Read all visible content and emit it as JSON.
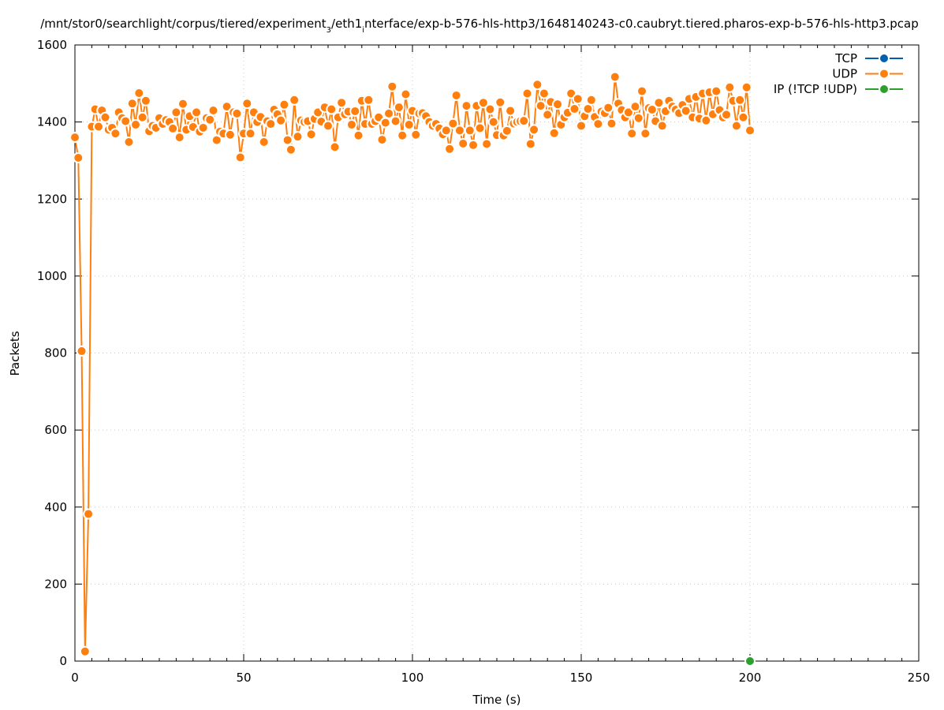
{
  "chart_data": {
    "type": "line",
    "title": {
      "parts": [
        {
          "text": "/mnt/stor0/searchlight/corpus/tiered/experiment",
          "sub": false
        },
        {
          "text": "3",
          "sub": true
        },
        {
          "text": "/eth1",
          "sub": false
        },
        {
          "text": "i",
          "sub": true
        },
        {
          "text": "nterface/exp-b-576-hls-http3/1648140243-c0.caubryt.tiered.pharos-exp-b-576-hls-http3.pcap",
          "sub": false
        }
      ]
    },
    "xlabel": "Time (s)",
    "ylabel": "Packets",
    "xlim": [
      0,
      250
    ],
    "ylim": [
      0,
      1600
    ],
    "x_ticks": [
      0,
      50,
      100,
      150,
      200,
      250
    ],
    "y_ticks": [
      0,
      200,
      400,
      600,
      800,
      1000,
      1200,
      1400,
      1600
    ],
    "grid": true,
    "legend_position": "top-right",
    "series": [
      {
        "name": "TCP",
        "color": "#0060ad",
        "x": [],
        "y": []
      },
      {
        "name": "UDP",
        "color": "#ff7f0e",
        "x": [
          0,
          1,
          2,
          3,
          4,
          5,
          6,
          7,
          8,
          9,
          10,
          11,
          12,
          13,
          14,
          15,
          16,
          17,
          18,
          19,
          20,
          21,
          22,
          23,
          24,
          25,
          26,
          27,
          28,
          29,
          30,
          31,
          32,
          33,
          34,
          35,
          36,
          37,
          38,
          39,
          40,
          41,
          42,
          43,
          44,
          45,
          46,
          47,
          48,
          49,
          50,
          51,
          52,
          53,
          54,
          55,
          56,
          57,
          58,
          59,
          60,
          61,
          62,
          63,
          64,
          65,
          66,
          67,
          68,
          69,
          70,
          71,
          72,
          73,
          74,
          75,
          76,
          77,
          78,
          79,
          80,
          81,
          82,
          83,
          84,
          85,
          86,
          87,
          88,
          89,
          90,
          91,
          92,
          93,
          94,
          95,
          96,
          97,
          98,
          99,
          100,
          101,
          102,
          103,
          104,
          105,
          106,
          107,
          108,
          109,
          110,
          111,
          112,
          113,
          114,
          115,
          116,
          117,
          118,
          119,
          120,
          121,
          122,
          123,
          124,
          125,
          126,
          127,
          128,
          129,
          130,
          131,
          132,
          133,
          134,
          135,
          136,
          137,
          138,
          139,
          140,
          141,
          142,
          143,
          144,
          145,
          146,
          147,
          148,
          149,
          150,
          151,
          152,
          153,
          154,
          155,
          156,
          157,
          158,
          159,
          160,
          161,
          162,
          163,
          164,
          165,
          166,
          167,
          168,
          169,
          170,
          171,
          172,
          173,
          174,
          175,
          176,
          177,
          178,
          179,
          180,
          181,
          182,
          183,
          184,
          185,
          186,
          187,
          188,
          189,
          190,
          191,
          192,
          193,
          194,
          195,
          196,
          197,
          198,
          199,
          200
        ],
        "y": [
          1360,
          1307,
          805,
          25,
          382,
          1388,
          1433,
          1388,
          1430,
          1412,
          1380,
          1385,
          1370,
          1425,
          1410,
          1402,
          1348,
          1448,
          1393,
          1475,
          1412,
          1455,
          1376,
          1390,
          1385,
          1410,
          1395,
          1405,
          1400,
          1383,
          1425,
          1360,
          1447,
          1380,
          1415,
          1387,
          1425,
          1375,
          1385,
          1410,
          1406,
          1430,
          1353,
          1375,
          1370,
          1440,
          1367,
          1425,
          1422,
          1308,
          1370,
          1448,
          1370,
          1425,
          1400,
          1413,
          1348,
          1402,
          1395,
          1432,
          1420,
          1404,
          1445,
          1353,
          1328,
          1457,
          1362,
          1404,
          1400,
          1402,
          1368,
          1408,
          1425,
          1401,
          1438,
          1390,
          1433,
          1335,
          1412,
          1450,
          1420,
          1427,
          1393,
          1428,
          1365,
          1455,
          1395,
          1457,
          1395,
          1402,
          1412,
          1354,
          1398,
          1422,
          1492,
          1402,
          1438,
          1365,
          1472,
          1393,
          1429,
          1367,
          1422,
          1423,
          1415,
          1400,
          1390,
          1395,
          1383,
          1368,
          1378,
          1330,
          1396,
          1469,
          1378,
          1344,
          1442,
          1378,
          1340,
          1442,
          1384,
          1450,
          1343,
          1433,
          1400,
          1366,
          1451,
          1365,
          1377,
          1429,
          1396,
          1400,
          1402,
          1403,
          1474,
          1343,
          1380,
          1497,
          1442,
          1474,
          1419,
          1452,
          1371,
          1446,
          1393,
          1412,
          1424,
          1474,
          1434,
          1460,
          1390,
          1415,
          1434,
          1457,
          1413,
          1395,
          1427,
          1423,
          1437,
          1396,
          1517,
          1448,
          1431,
          1412,
          1425,
          1370,
          1440,
          1410,
          1480,
          1370,
          1436,
          1432,
          1402,
          1450,
          1390,
          1428,
          1455,
          1440,
          1432,
          1423,
          1444,
          1429,
          1460,
          1412,
          1465,
          1409,
          1474,
          1404,
          1477,
          1420,
          1480,
          1431,
          1412,
          1419,
          1490,
          1455,
          1390,
          1457,
          1412,
          1490,
          1378
        ]
      },
      {
        "name": "IP (!TCP  !UDP)",
        "color": "#2ca02c",
        "x": [
          200
        ],
        "y": [
          0
        ]
      }
    ]
  }
}
